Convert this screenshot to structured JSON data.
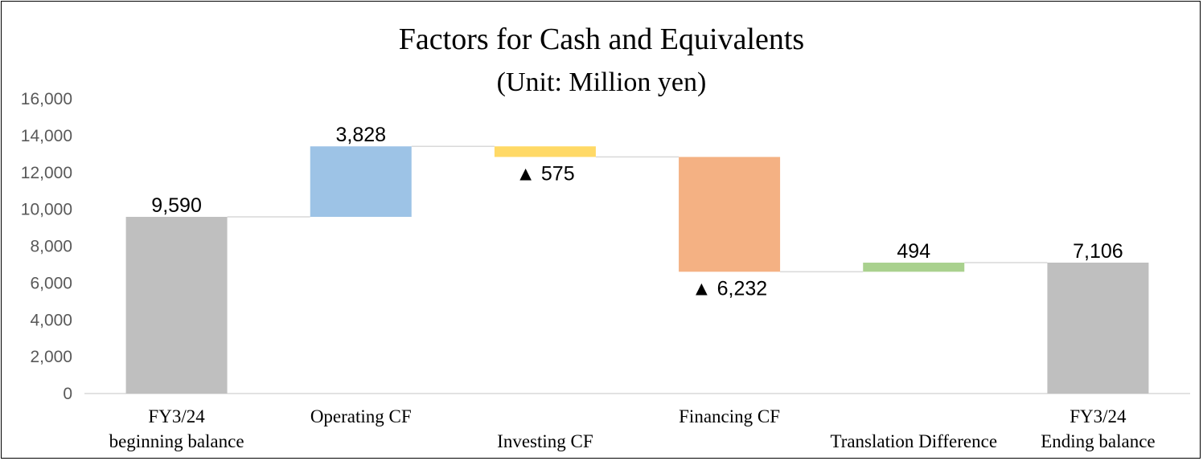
{
  "chart_data": {
    "type": "bar",
    "subtype": "waterfall",
    "title": "Factors for Cash and Equivalents",
    "subtitle": "(Unit: Million yen)",
    "xlabel": "",
    "ylabel": "",
    "ylim": [
      0,
      16000
    ],
    "y_ticks": [
      0,
      2000,
      4000,
      6000,
      8000,
      10000,
      12000,
      14000,
      16000
    ],
    "y_tick_labels": [
      "0",
      "2,000",
      "4,000",
      "6,000",
      "8,000",
      "10,000",
      "12,000",
      "14,000",
      "16,000"
    ],
    "grid": false,
    "legend": "none",
    "negative_marker": "▲",
    "categories": [
      {
        "label_lines": [
          "FY3/24",
          "beginning balance"
        ],
        "value": 9590,
        "kind": "total",
        "data_label": "9,590",
        "color": "#BFBFBF"
      },
      {
        "label_lines": [
          "Operating CF"
        ],
        "value": 3828,
        "kind": "change",
        "data_label": "3,828",
        "color": "#9DC3E6"
      },
      {
        "label_lines": [
          "Investing CF"
        ],
        "value": -575,
        "kind": "change",
        "data_label": "▲ 575",
        "color": "#FFD966"
      },
      {
        "label_lines": [
          "Financing CF"
        ],
        "value": -6232,
        "kind": "change",
        "data_label": "▲ 6,232",
        "color": "#F4B183"
      },
      {
        "label_lines": [
          "Translation Difference"
        ],
        "value": 494,
        "kind": "change",
        "data_label": "494",
        "color": "#A9D18E"
      },
      {
        "label_lines": [
          "FY3/24",
          "Ending balance"
        ],
        "value": 7106,
        "kind": "total",
        "data_label": "7,106",
        "color": "#BFBFBF"
      }
    ],
    "colors": {
      "axis": "#D9D9D9",
      "connector": "#D9D9D9"
    }
  }
}
